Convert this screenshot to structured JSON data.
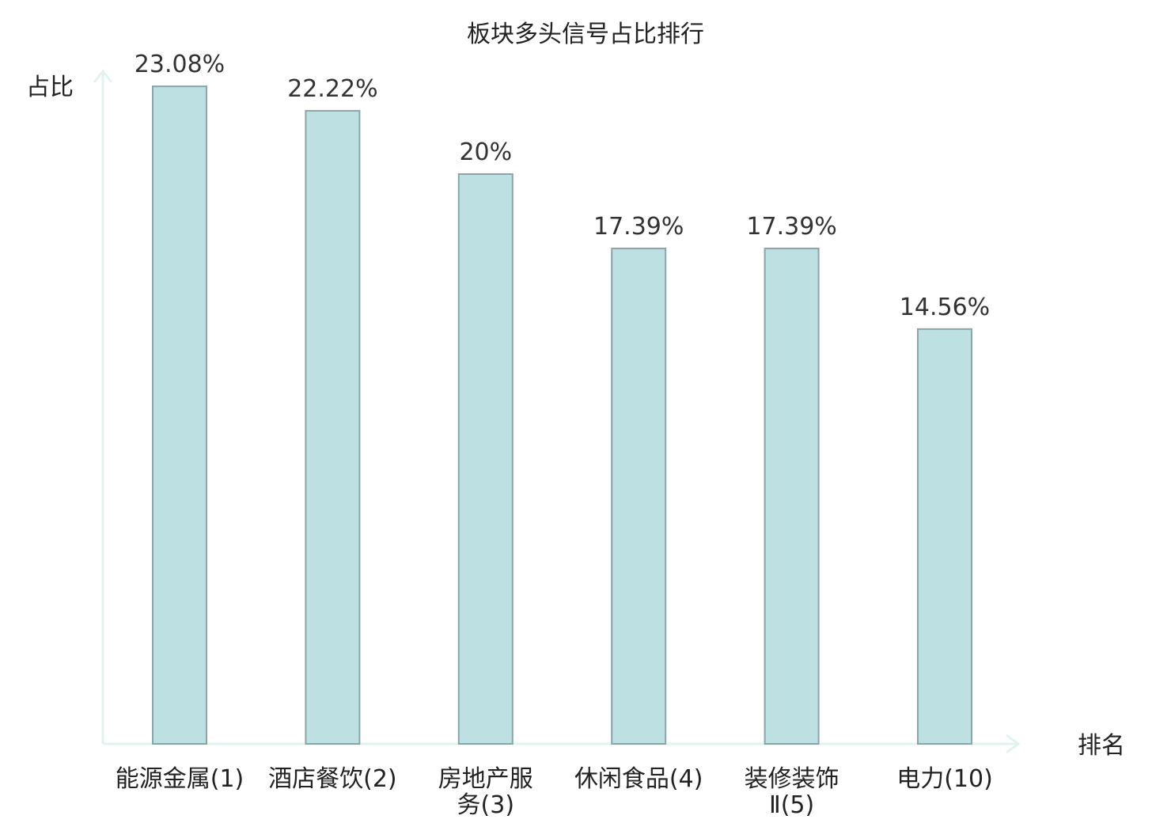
{
  "chart_data": {
    "type": "bar",
    "title": "板块多头信号占比排行",
    "xlabel": "排名",
    "ylabel": "占比",
    "ylim": [
      0,
      25
    ],
    "grid": false,
    "legend": "none",
    "categories": [
      [
        "能源金属(1)"
      ],
      [
        "酒店餐饮(2)"
      ],
      [
        "房地产服",
        "务(3)"
      ],
      [
        "休闲食品(4)"
      ],
      [
        "装修装饰",
        "Ⅱ(5)"
      ],
      [
        "电力(10)"
      ]
    ],
    "values": [
      23.08,
      22.22,
      20,
      17.39,
      17.39,
      14.56
    ],
    "value_labels": [
      "23.08%",
      "22.22%",
      "20%",
      "17.39%",
      "17.39%",
      "14.56%"
    ],
    "highlight_index": 5
  },
  "colors": {
    "bar_fill": "#bde0e3",
    "bar_stroke": "#8aa5a8",
    "axis": "#e0f3f1",
    "highlight_label": "#e02020",
    "text": "#222222"
  }
}
